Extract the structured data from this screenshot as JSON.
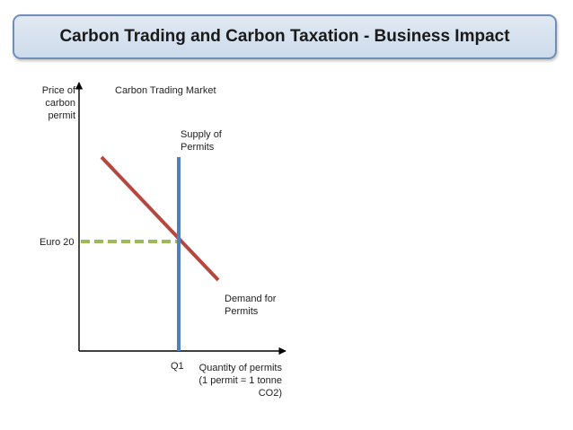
{
  "title": "Carbon Trading and Carbon Taxation - Business Impact",
  "chart": {
    "heading": "Carbon Trading Market",
    "y_axis_label": [
      "Price of",
      "carbon",
      "permit"
    ],
    "x_axis_label": [
      "Quantity of permits",
      "(1 permit = 1 tonne",
      "CO2)"
    ],
    "supply_label": [
      "Supply of",
      "Permits"
    ],
    "demand_label": [
      "Demand for",
      "Permits"
    ],
    "price_label": "Euro 20",
    "quantity_label": "Q1"
  },
  "colors": {
    "supply": "#4f7fc0",
    "demand": "#b5473e",
    "price_line": "#9bbb59",
    "title_border": "#6f8fb8"
  }
}
